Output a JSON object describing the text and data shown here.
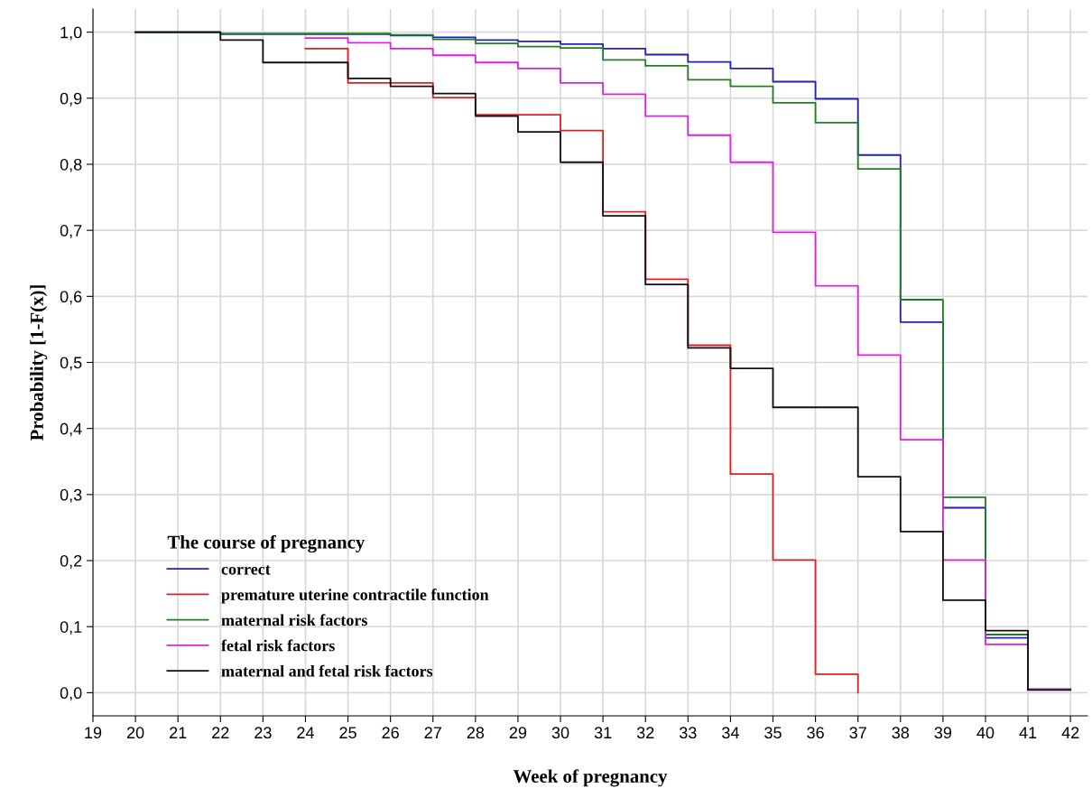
{
  "chart_data": {
    "type": "step",
    "xlabel": "Week of pregnancy",
    "ylabel": "Probability [1-F(x)]",
    "legend_title": "The course of pregnancy",
    "xlim": [
      19,
      42.4
    ],
    "ylim": [
      -0.035,
      1.035
    ],
    "xticks": [
      19,
      20,
      21,
      22,
      23,
      24,
      25,
      26,
      27,
      28,
      29,
      30,
      31,
      32,
      33,
      34,
      35,
      36,
      37,
      38,
      39,
      40,
      41,
      42
    ],
    "yticks": [
      {
        "value": 0,
        "label": "0,0"
      },
      {
        "value": 0.1,
        "label": "0,1"
      },
      {
        "value": 0.2,
        "label": "0,2"
      },
      {
        "value": 0.3,
        "label": "0,3"
      },
      {
        "value": 0.4,
        "label": "0,4"
      },
      {
        "value": 0.5,
        "label": "0,5"
      },
      {
        "value": 0.6,
        "label": "0,6"
      },
      {
        "value": 0.7,
        "label": "0,7"
      },
      {
        "value": 0.8,
        "label": "0,8"
      },
      {
        "value": 0.9,
        "label": "0,9"
      },
      {
        "value": 1.0,
        "label": "1,0"
      }
    ],
    "grid": true,
    "legend": "bottom left",
    "line_style": "solid",
    "marker": "none",
    "series": [
      {
        "name": "correct",
        "color": "#2020c0",
        "x": [
          20,
          22,
          26,
          27,
          28,
          29,
          30,
          31,
          32,
          33,
          34,
          35,
          36,
          37,
          38,
          39,
          40,
          41,
          42
        ],
        "values": [
          1.0,
          0.997,
          0.995,
          0.992,
          0.988,
          0.986,
          0.982,
          0.975,
          0.966,
          0.955,
          0.945,
          0.925,
          0.899,
          0.814,
          0.561,
          0.28,
          0.083,
          0.005,
          0.005
        ]
      },
      {
        "name": "premature uterine contractile function",
        "color": "#e02020",
        "x": [
          24,
          25,
          27,
          28,
          30,
          31,
          32,
          33,
          34,
          35,
          36,
          37
        ],
        "values": [
          0.975,
          0.923,
          0.901,
          0.875,
          0.851,
          0.728,
          0.626,
          0.526,
          0.331,
          0.201,
          0.028,
          0.0
        ]
      },
      {
        "name": "maternal risk factors",
        "color": "#208020",
        "x": [
          20,
          22,
          26,
          27,
          28,
          29,
          30,
          31,
          32,
          33,
          34,
          35,
          36,
          37,
          38,
          39,
          40,
          41,
          42
        ],
        "values": [
          1.0,
          0.998,
          0.996,
          0.989,
          0.983,
          0.978,
          0.976,
          0.958,
          0.949,
          0.928,
          0.918,
          0.893,
          0.863,
          0.793,
          0.595,
          0.296,
          0.088,
          0.005,
          0.005
        ]
      },
      {
        "name": "fetal risk factors",
        "color": "#e020e0",
        "x": [
          24,
          25,
          26,
          27,
          28,
          29,
          30,
          31,
          32,
          33,
          34,
          35,
          36,
          37,
          38,
          39,
          40,
          41,
          42
        ],
        "values": [
          0.991,
          0.984,
          0.975,
          0.965,
          0.954,
          0.945,
          0.923,
          0.906,
          0.873,
          0.844,
          0.803,
          0.697,
          0.616,
          0.511,
          0.383,
          0.201,
          0.073,
          0.005,
          0.005
        ]
      },
      {
        "name": "maternal and fetal risk factors",
        "color": "#101010",
        "x": [
          20,
          22,
          23,
          25,
          26,
          27,
          28,
          29,
          30,
          31,
          32,
          33,
          34,
          35,
          37,
          38,
          39,
          40,
          41,
          42
        ],
        "values": [
          1.0,
          0.988,
          0.954,
          0.93,
          0.918,
          0.907,
          0.873,
          0.849,
          0.803,
          0.722,
          0.618,
          0.522,
          0.491,
          0.432,
          0.327,
          0.244,
          0.14,
          0.094,
          0.004,
          0.004
        ]
      }
    ]
  }
}
